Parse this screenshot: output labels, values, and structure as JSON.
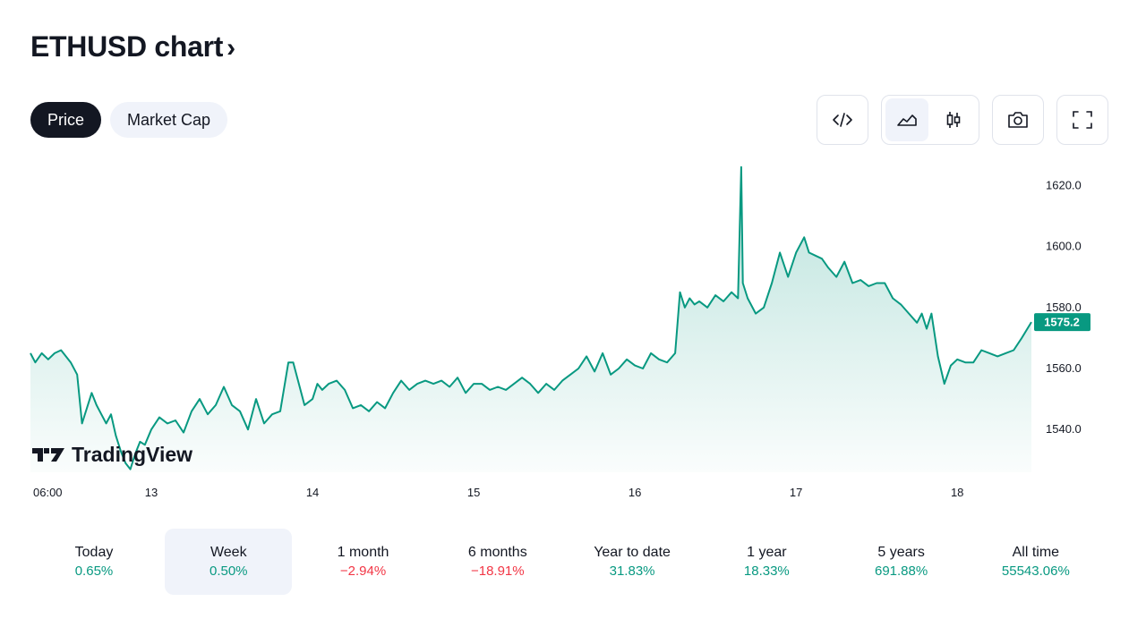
{
  "header": {
    "title": "ETHUSD chart",
    "chevron": "›"
  },
  "tabs": [
    {
      "label": "Price",
      "active": true
    },
    {
      "label": "Market Cap",
      "active": false
    }
  ],
  "toolbar": {
    "buttons": [
      {
        "icon": "embed-code-icon"
      },
      {
        "icon": "area-chart-icon",
        "active": true
      },
      {
        "icon": "candlestick-icon"
      },
      {
        "icon": "camera-icon"
      },
      {
        "icon": "fullscreen-icon"
      }
    ]
  },
  "brand": {
    "logo_text": "TradingView"
  },
  "colors": {
    "line": "#089981",
    "positive": "#089981",
    "negative": "#f23645",
    "active_bg": "#f0f3fa",
    "dark": "#131722"
  },
  "chart_data": {
    "type": "area",
    "x_ticks": [
      "06:00",
      "13",
      "14",
      "15",
      "16",
      "17",
      "18"
    ],
    "y_ticks": [
      "1620.0",
      "1600.0",
      "1580.0",
      "1560.0",
      "1540.0"
    ],
    "ylim": [
      1526,
      1628
    ],
    "x_range_days": [
      12.25,
      18.46
    ],
    "last_price_label": "1575.2",
    "series": [
      {
        "x": [
          12.25,
          12.28,
          12.32,
          12.36,
          12.4,
          12.44,
          12.47,
          12.5,
          12.54,
          12.57,
          12.6,
          12.63,
          12.66,
          12.69,
          12.72,
          12.75,
          12.78,
          12.81,
          12.84,
          12.87,
          12.9,
          12.93,
          12.96,
          13.0,
          13.05,
          13.1,
          13.15,
          13.2,
          13.25,
          13.3,
          13.35,
          13.4,
          13.45,
          13.5,
          13.55,
          13.6,
          13.65,
          13.7,
          13.75,
          13.8,
          13.85,
          13.88,
          13.91,
          13.95,
          14.0,
          14.03,
          14.06,
          14.1,
          14.15,
          14.2,
          14.25,
          14.3,
          14.35,
          14.4,
          14.45,
          14.5,
          14.55,
          14.6,
          14.65,
          14.7,
          14.75,
          14.8,
          14.85,
          14.9,
          14.95,
          15.0,
          15.05,
          15.1,
          15.15,
          15.2,
          15.25,
          15.3,
          15.35,
          15.4,
          15.45,
          15.5,
          15.55,
          15.6,
          15.65,
          15.7,
          15.75,
          15.8,
          15.85,
          15.9,
          15.95,
          16.0,
          16.05,
          16.1,
          16.15,
          16.2,
          16.25,
          16.28,
          16.31,
          16.34,
          16.37,
          16.4,
          16.45,
          16.5,
          16.55,
          16.6,
          16.64,
          16.66,
          16.67,
          16.7,
          16.75,
          16.8,
          16.85,
          16.9,
          16.95,
          17.0,
          17.05,
          17.08,
          17.12,
          17.16,
          17.2,
          17.25,
          17.3,
          17.35,
          17.4,
          17.45,
          17.5,
          17.55,
          17.6,
          17.65,
          17.7,
          17.75,
          17.78,
          17.81,
          17.84,
          17.88,
          17.92,
          17.96,
          18.0,
          18.05,
          18.1,
          18.15,
          18.2,
          18.25,
          18.3,
          18.35,
          18.4,
          18.46
        ],
        "values": [
          1565,
          1562,
          1565,
          1563,
          1565,
          1566,
          1564,
          1562,
          1558,
          1542,
          1547,
          1552,
          1548,
          1545,
          1542,
          1545,
          1538,
          1533,
          1529,
          1527,
          1532,
          1536,
          1535,
          1540,
          1544,
          1542,
          1543,
          1539,
          1546,
          1550,
          1545,
          1548,
          1554,
          1548,
          1546,
          1540,
          1550,
          1542,
          1545,
          1546,
          1562,
          1562,
          1556,
          1548,
          1550,
          1555,
          1553,
          1555,
          1556,
          1553,
          1547,
          1548,
          1546,
          1549,
          1547,
          1552,
          1556,
          1553,
          1555,
          1556,
          1555,
          1556,
          1554,
          1557,
          1552,
          1555,
          1555,
          1553,
          1554,
          1553,
          1555,
          1557,
          1555,
          1552,
          1555,
          1553,
          1556,
          1558,
          1560,
          1564,
          1559,
          1565,
          1558,
          1560,
          1563,
          1561,
          1560,
          1565,
          1563,
          1562,
          1565,
          1585,
          1580,
          1583,
          1581,
          1582,
          1580,
          1584,
          1582,
          1585,
          1583,
          1626,
          1588,
          1583,
          1578,
          1580,
          1588,
          1598,
          1590,
          1598,
          1603,
          1598,
          1597,
          1596,
          1593,
          1590,
          1595,
          1588,
          1589,
          1587,
          1588,
          1588,
          1583,
          1581,
          1578,
          1575,
          1578,
          1573,
          1578,
          1564,
          1555,
          1561,
          1563,
          1562,
          1562,
          1566,
          1565,
          1564,
          1565,
          1566,
          1570,
          1575.2
        ]
      }
    ]
  },
  "periods": [
    {
      "label": "Today",
      "value": "0.65%",
      "sign": "pos",
      "active": false
    },
    {
      "label": "Week",
      "value": "0.50%",
      "sign": "pos",
      "active": true
    },
    {
      "label": "1 month",
      "value": "−2.94%",
      "sign": "neg",
      "active": false
    },
    {
      "label": "6 months",
      "value": "−18.91%",
      "sign": "neg",
      "active": false
    },
    {
      "label": "Year to date",
      "value": "31.83%",
      "sign": "pos",
      "active": false
    },
    {
      "label": "1 year",
      "value": "18.33%",
      "sign": "pos",
      "active": false
    },
    {
      "label": "5 years",
      "value": "691.88%",
      "sign": "pos",
      "active": false
    },
    {
      "label": "All time",
      "value": "55543.06%",
      "sign": "pos",
      "active": false
    }
  ]
}
